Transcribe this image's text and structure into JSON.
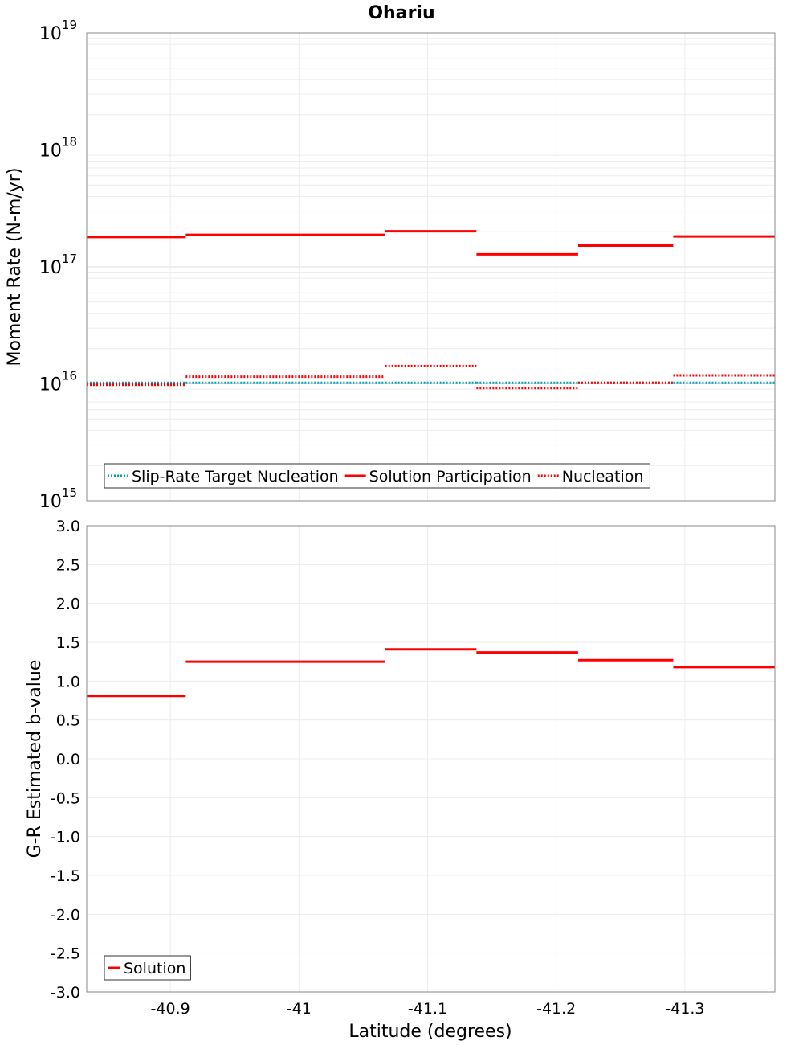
{
  "chart_data": [
    {
      "type": "line",
      "title": "Ohariu",
      "xlabel": "",
      "ylabel": "Moment Rate (N-m/yr)",
      "yscale": "log",
      "ylim": [
        1000000000000000.0,
        1e+19
      ],
      "xlim": [
        -40.835,
        -41.37
      ],
      "x_reversed": true,
      "grid": true,
      "legend_position": "bottom-left",
      "ytick_labels": [
        {
          "base": "10",
          "exp": "15"
        },
        {
          "base": "10",
          "exp": "16"
        },
        {
          "base": "10",
          "exp": "17"
        },
        {
          "base": "10",
          "exp": "18"
        },
        {
          "base": "10",
          "exp": "19"
        }
      ],
      "series": [
        {
          "name": "Slip-Rate Target Nucleation",
          "color": "#00a0b4",
          "style": "dotted",
          "segments": [
            {
              "x0": -40.835,
              "x1": -40.912,
              "y": 1.02e+16
            },
            {
              "x0": -40.912,
              "x1": -41.067,
              "y": 1.02e+16
            },
            {
              "x0": -41.067,
              "x1": -41.138,
              "y": 1.02e+16
            },
            {
              "x0": -41.138,
              "x1": -41.217,
              "y": 1.02e+16
            },
            {
              "x0": -41.217,
              "x1": -41.291,
              "y": 1.02e+16
            },
            {
              "x0": -41.291,
              "x1": -41.37,
              "y": 1.02e+16
            }
          ]
        },
        {
          "name": "Solution Participation",
          "color": "#ff0000",
          "style": "solid",
          "segments": [
            {
              "x0": -40.835,
              "x1": -40.912,
              "y": 1.8e+17
            },
            {
              "x0": -40.912,
              "x1": -41.067,
              "y": 1.88e+17
            },
            {
              "x0": -41.067,
              "x1": -41.138,
              "y": 2.02e+17
            },
            {
              "x0": -41.138,
              "x1": -41.217,
              "y": 1.28e+17
            },
            {
              "x0": -41.217,
              "x1": -41.291,
              "y": 1.52e+17
            },
            {
              "x0": -41.291,
              "x1": -41.37,
              "y": 1.82e+17
            }
          ]
        },
        {
          "name": "Nucleation",
          "color": "#ff0000",
          "style": "dotted",
          "segments": [
            {
              "x0": -40.835,
              "x1": -40.912,
              "y": 9800000000000000.0
            },
            {
              "x0": -40.912,
              "x1": -41.067,
              "y": 1.15e+16
            },
            {
              "x0": -41.067,
              "x1": -41.138,
              "y": 1.42e+16
            },
            {
              "x0": -41.138,
              "x1": -41.217,
              "y": 9200000000000000.0
            },
            {
              "x0": -41.217,
              "x1": -41.291,
              "y": 1.02e+16
            },
            {
              "x0": -41.291,
              "x1": -41.37,
              "y": 1.18e+16
            }
          ]
        }
      ]
    },
    {
      "type": "line",
      "title": "",
      "xlabel": "Latitude (degrees)",
      "ylabel": "G-R Estimated b-value",
      "ylim": [
        -3.0,
        3.0
      ],
      "xlim": [
        -40.835,
        -41.37
      ],
      "x_reversed": true,
      "grid": true,
      "legend_position": "bottom-left",
      "ytick_labels": [
        "3.0",
        "2.5",
        "2.0",
        "1.5",
        "1.0",
        "0.5",
        "0.0",
        "-0.5",
        "-1.0",
        "-1.5",
        "-2.0",
        "-2.5",
        "-3.0"
      ],
      "xticks": [
        -40.9,
        -41.0,
        -41.1,
        -41.2,
        -41.3
      ],
      "xtick_labels": [
        "-40.9",
        "-41",
        "-41.1",
        "-41.2",
        "-41.3"
      ],
      "series": [
        {
          "name": "Solution",
          "color": "#ff0000",
          "style": "solid",
          "segments": [
            {
              "x0": -40.835,
              "x1": -40.912,
              "y": 0.81
            },
            {
              "x0": -40.912,
              "x1": -41.067,
              "y": 1.25
            },
            {
              "x0": -41.067,
              "x1": -41.138,
              "y": 1.41
            },
            {
              "x0": -41.138,
              "x1": -41.217,
              "y": 1.37
            },
            {
              "x0": -41.217,
              "x1": -41.291,
              "y": 1.27
            },
            {
              "x0": -41.291,
              "x1": -41.37,
              "y": 1.18
            }
          ]
        }
      ]
    }
  ]
}
